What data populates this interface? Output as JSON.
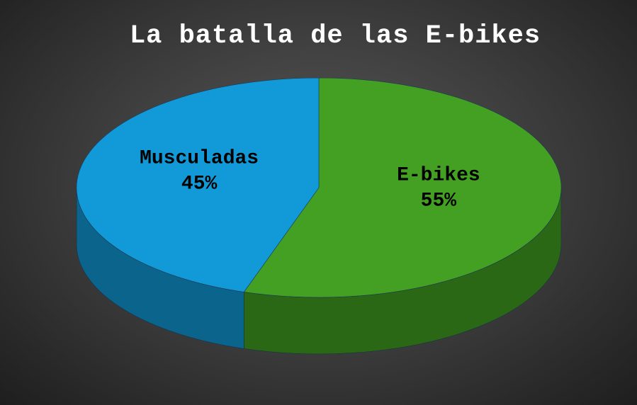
{
  "chart_data": {
    "type": "pie",
    "title": "La batalla de las E-bikes",
    "categories": [
      "E-bikes",
      "Musculadas"
    ],
    "values": [
      55,
      45
    ],
    "value_labels": [
      "55%",
      "45%"
    ],
    "colors": [
      "#43a023",
      "#129ad8"
    ]
  }
}
